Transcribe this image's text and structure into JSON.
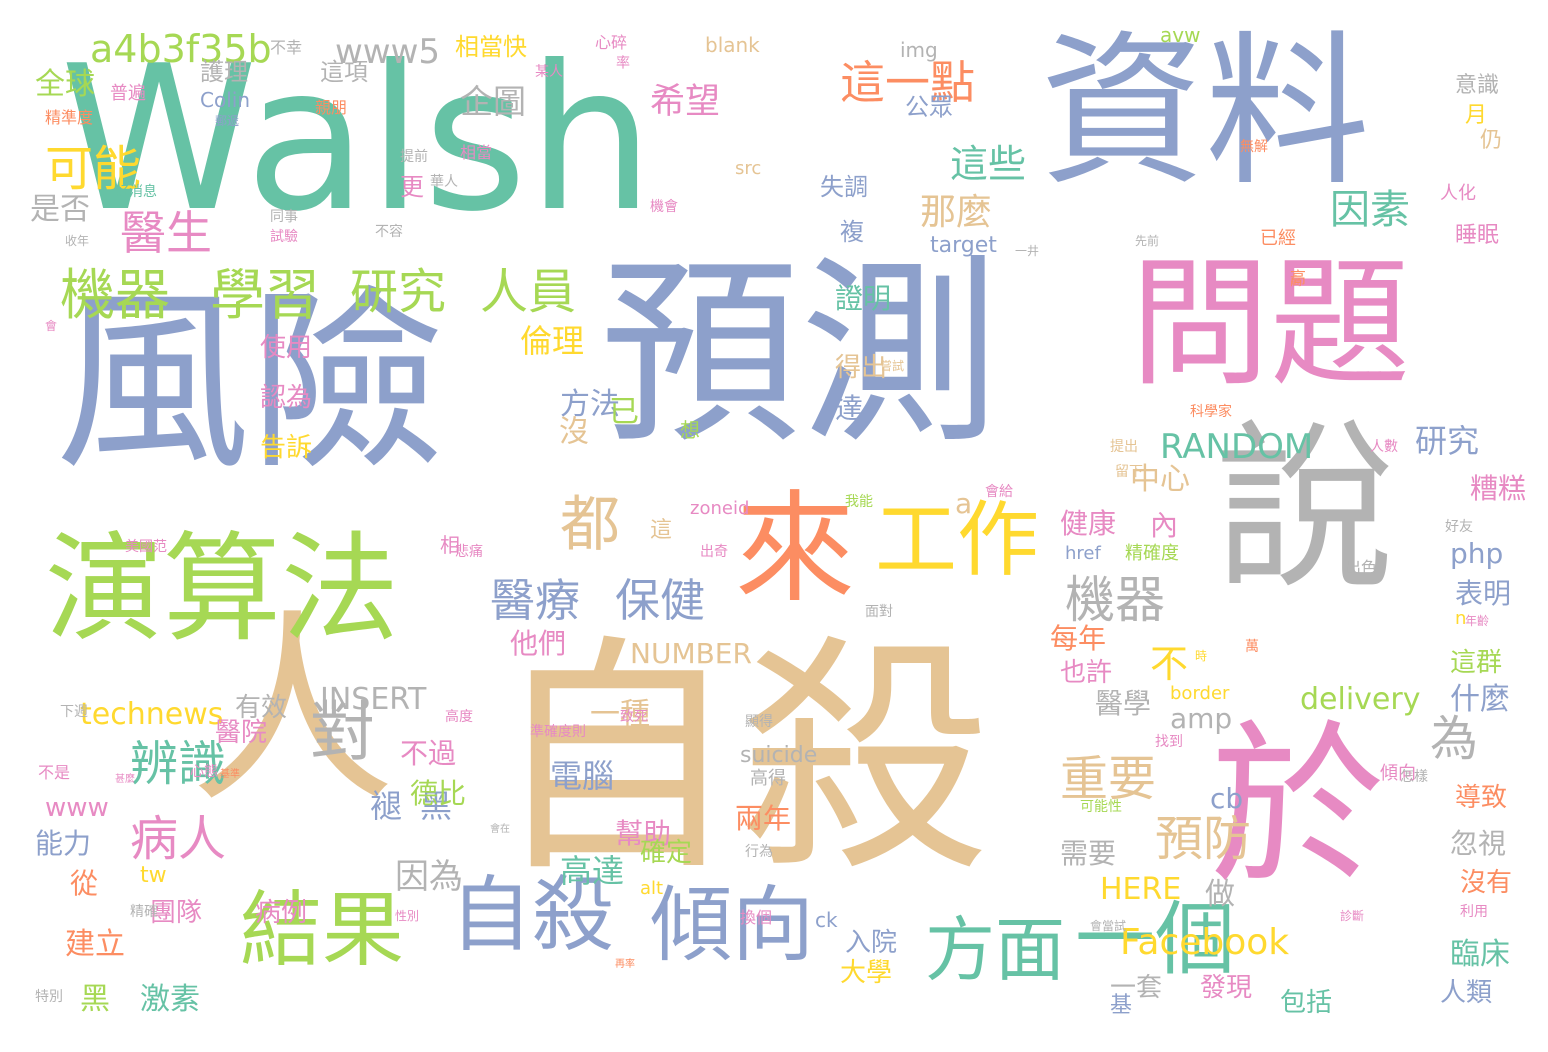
{
  "palette": {
    "teal": "#66c2a5",
    "orange": "#fc8d62",
    "blue": "#8da0cb",
    "pink": "#e78ac3",
    "green": "#a6d854",
    "yellow": "#ffd92f",
    "tan": "#e5c494",
    "gray": "#b3b3b3"
  },
  "words": [
    {
      "text": "Walsh",
      "color": "teal"
    },
    {
      "text": "資料",
      "color": "blue"
    },
    {
      "text": "風險",
      "color": "blue"
    },
    {
      "text": "預測",
      "color": "blue"
    },
    {
      "text": "問題",
      "color": "pink"
    },
    {
      "text": "自殺",
      "color": "tan"
    },
    {
      "text": "說",
      "color": "gray"
    },
    {
      "text": "人",
      "color": "tan"
    },
    {
      "text": "於",
      "color": "pink"
    },
    {
      "text": "演算法",
      "color": "green"
    },
    {
      "text": "來",
      "color": "orange"
    },
    {
      "text": "工作",
      "color": "yellow"
    },
    {
      "text": "自殺",
      "color": "blue"
    },
    {
      "text": "傾向",
      "color": "blue"
    },
    {
      "text": "結果",
      "color": "green"
    },
    {
      "text": "方面",
      "color": "teal"
    },
    {
      "text": "一個",
      "color": "teal"
    },
    {
      "text": "機器",
      "color": "green"
    },
    {
      "text": "學習",
      "color": "green"
    },
    {
      "text": "研究",
      "color": "green"
    },
    {
      "text": "人員",
      "color": "green"
    },
    {
      "text": "對",
      "color": "gray"
    },
    {
      "text": "都",
      "color": "tan"
    },
    {
      "text": "醫療",
      "color": "blue"
    },
    {
      "text": "保健",
      "color": "blue"
    },
    {
      "text": "機器",
      "color": "gray"
    },
    {
      "text": "重要",
      "color": "tan"
    },
    {
      "text": "預防",
      "color": "tan"
    },
    {
      "text": "辨識",
      "color": "teal"
    },
    {
      "text": "病人",
      "color": "pink"
    },
    {
      "text": "可能",
      "color": "yellow"
    },
    {
      "text": "醫生",
      "color": "pink"
    },
    {
      "text": "a4b3f35b",
      "color": "green"
    },
    {
      "text": "www5",
      "color": "gray"
    },
    {
      "text": "企圖",
      "color": "gray"
    },
    {
      "text": "希望",
      "color": "pink"
    },
    {
      "text": "這一點",
      "color": "orange"
    },
    {
      "text": "這些",
      "color": "teal"
    },
    {
      "text": "那麼",
      "color": "tan"
    },
    {
      "text": "因素",
      "color": "teal"
    },
    {
      "text": "全球",
      "color": "green"
    },
    {
      "text": "是否",
      "color": "gray"
    },
    {
      "text": "不",
      "color": "yellow"
    },
    {
      "text": "為",
      "color": "gray"
    },
    {
      "text": "RANDOM",
      "color": "teal"
    },
    {
      "text": "研究",
      "color": "blue"
    },
    {
      "text": "中心",
      "color": "tan"
    },
    {
      "text": "a",
      "color": "tan"
    },
    {
      "text": "倫理",
      "color": "yellow"
    },
    {
      "text": "方法",
      "color": "blue"
    },
    {
      "text": "沒",
      "color": "tan"
    },
    {
      "text": "已",
      "color": "green"
    },
    {
      "text": "證明",
      "color": "teal"
    },
    {
      "text": "得出",
      "color": "tan"
    },
    {
      "text": "達",
      "color": "blue"
    },
    {
      "text": "使用",
      "color": "pink"
    },
    {
      "text": "認為",
      "color": "pink"
    },
    {
      "text": "告訴",
      "color": "yellow"
    },
    {
      "text": "NUMBER",
      "color": "tan"
    },
    {
      "text": "他們",
      "color": "pink"
    },
    {
      "text": "INSERT",
      "color": "gray"
    },
    {
      "text": "technews",
      "color": "yellow"
    },
    {
      "text": "有效",
      "color": "gray"
    },
    {
      "text": "一種",
      "color": "tan"
    },
    {
      "text": "電腦",
      "color": "blue"
    },
    {
      "text": "幫助",
      "color": "pink"
    },
    {
      "text": "兩年",
      "color": "orange"
    },
    {
      "text": "高達",
      "color": "teal"
    },
    {
      "text": "確定",
      "color": "green"
    },
    {
      "text": "褪",
      "color": "blue"
    },
    {
      "text": "黑",
      "color": "blue"
    },
    {
      "text": "德比",
      "color": "green"
    },
    {
      "text": "不過",
      "color": "pink"
    },
    {
      "text": "因為",
      "color": "gray"
    },
    {
      "text": "病例",
      "color": "pink"
    },
    {
      "text": "團隊",
      "color": "pink"
    },
    {
      "text": "建立",
      "color": "orange"
    },
    {
      "text": "黑",
      "color": "green"
    },
    {
      "text": "激素",
      "color": "teal"
    },
    {
      "text": "大學",
      "color": "yellow"
    },
    {
      "text": "入院",
      "color": "blue"
    },
    {
      "text": "Facebook",
      "color": "yellow"
    },
    {
      "text": "一套",
      "color": "gray"
    },
    {
      "text": "發現",
      "color": "pink"
    },
    {
      "text": "包括",
      "color": "teal"
    },
    {
      "text": "臨床",
      "color": "teal"
    },
    {
      "text": "人類",
      "color": "blue"
    },
    {
      "text": "做",
      "color": "gray"
    },
    {
      "text": "HERE",
      "color": "yellow"
    },
    {
      "text": "需要",
      "color": "gray"
    },
    {
      "text": "cb",
      "color": "blue"
    },
    {
      "text": "amp",
      "color": "gray"
    },
    {
      "text": "醫學",
      "color": "gray"
    },
    {
      "text": "delivery",
      "color": "green"
    },
    {
      "text": "什麼",
      "color": "blue"
    },
    {
      "text": "每年",
      "color": "orange"
    },
    {
      "text": "也許",
      "color": "pink"
    },
    {
      "text": "健康",
      "color": "pink"
    },
    {
      "text": "內",
      "color": "pink"
    },
    {
      "text": "php",
      "color": "blue"
    },
    {
      "text": "表明",
      "color": "blue"
    },
    {
      "text": "糟糕",
      "color": "pink"
    },
    {
      "text": "這群",
      "color": "green"
    },
    {
      "text": "忽視",
      "color": "gray"
    },
    {
      "text": "沒有",
      "color": "orange"
    },
    {
      "text": "導致",
      "color": "orange"
    },
    {
      "text": "suicide",
      "color": "gray"
    },
    {
      "text": "能力",
      "color": "blue"
    },
    {
      "text": "www",
      "color": "pink"
    },
    {
      "text": "從",
      "color": "orange"
    },
    {
      "text": "tw",
      "color": "yellow"
    },
    {
      "text": "醫院",
      "color": "pink"
    },
    {
      "text": "睡眠",
      "color": "pink"
    },
    {
      "text": "意識",
      "color": "gray"
    },
    {
      "text": "月",
      "color": "yellow"
    },
    {
      "text": "仍",
      "color": "tan"
    },
    {
      "text": "人化",
      "color": "pink"
    },
    {
      "text": "已經",
      "color": "orange"
    },
    {
      "text": "高",
      "color": "orange"
    },
    {
      "text": "相當快",
      "color": "yellow"
    },
    {
      "text": "這項",
      "color": "gray"
    },
    {
      "text": "護理",
      "color": "gray"
    },
    {
      "text": "普遍",
      "color": "pink"
    },
    {
      "text": "精準度",
      "color": "orange"
    },
    {
      "text": "Colin",
      "color": "blue"
    },
    {
      "text": "img",
      "color": "gray"
    },
    {
      "text": "blank",
      "color": "tan"
    },
    {
      "text": "avw",
      "color": "green"
    },
    {
      "text": "公眾",
      "color": "blue"
    },
    {
      "text": "失調",
      "color": "blue"
    },
    {
      "text": "複",
      "color": "blue"
    },
    {
      "text": "更",
      "color": "pink"
    },
    {
      "text": "src",
      "color": "tan"
    },
    {
      "text": "target",
      "color": "blue"
    },
    {
      "text": "zoneid",
      "color": "pink"
    },
    {
      "text": "alt",
      "color": "yellow"
    },
    {
      "text": "ck",
      "color": "blue"
    },
    {
      "text": "href",
      "color": "blue"
    },
    {
      "text": "精確度",
      "color": "green"
    },
    {
      "text": "border",
      "color": "yellow"
    },
    {
      "text": "高得",
      "color": "gray"
    },
    {
      "text": "傾向",
      "color": "pink"
    },
    {
      "text": "n",
      "color": "yellow"
    },
    {
      "text": "基",
      "color": "blue"
    },
    {
      "text": "想",
      "color": "green"
    },
    {
      "text": "相",
      "color": "pink"
    },
    {
      "text": "這",
      "color": "tan"
    },
    {
      "text": "相當",
      "color": "pink"
    },
    {
      "text": "不幸",
      "color": "gray"
    },
    {
      "text": "心碎",
      "color": "pink"
    },
    {
      "text": "率",
      "color": "pink"
    },
    {
      "text": "某人",
      "color": "pink"
    },
    {
      "text": "無解",
      "color": "orange"
    },
    {
      "text": "機會",
      "color": "pink"
    },
    {
      "text": "好消息",
      "color": "teal"
    },
    {
      "text": "同事",
      "color": "gray"
    },
    {
      "text": "試驗",
      "color": "pink"
    },
    {
      "text": "收年",
      "color": "gray"
    },
    {
      "text": "不容",
      "color": "gray"
    },
    {
      "text": "提前",
      "color": "gray"
    },
    {
      "text": "華人",
      "color": "gray"
    },
    {
      "text": "親朋",
      "color": "orange"
    },
    {
      "text": "郵遞",
      "color": "blue"
    },
    {
      "text": "科學家",
      "color": "orange"
    },
    {
      "text": "提出",
      "color": "tan"
    },
    {
      "text": "留下",
      "color": "tan"
    },
    {
      "text": "人數",
      "color": "pink"
    },
    {
      "text": "會給",
      "color": "pink"
    },
    {
      "text": "我能",
      "color": "green"
    },
    {
      "text": "出色",
      "color": "gray"
    },
    {
      "text": "好友",
      "color": "gray"
    },
    {
      "text": "美國范",
      "color": "pink"
    },
    {
      "text": "悲痛",
      "color": "pink"
    },
    {
      "text": "出奇",
      "color": "pink"
    },
    {
      "text": "面對",
      "color": "gray"
    },
    {
      "text": "萬",
      "color": "orange"
    },
    {
      "text": "時",
      "color": "yellow"
    },
    {
      "text": "年齡",
      "color": "pink"
    },
    {
      "text": "下週",
      "color": "gray"
    },
    {
      "text": "高度",
      "color": "pink"
    },
    {
      "text": "準確度則",
      "color": "pink"
    },
    {
      "text": "致死",
      "color": "pink"
    },
    {
      "text": "顯得",
      "color": "gray"
    },
    {
      "text": "找到",
      "color": "pink"
    },
    {
      "text": "怎樣",
      "color": "gray"
    },
    {
      "text": "心態",
      "color": "pink"
    },
    {
      "text": "不是",
      "color": "pink"
    },
    {
      "text": "會當試",
      "color": "gray"
    },
    {
      "text": "特別",
      "color": "gray"
    },
    {
      "text": "精確",
      "color": "gray"
    },
    {
      "text": "性別",
      "color": "pink"
    },
    {
      "text": "換個",
      "color": "pink"
    },
    {
      "text": "行為",
      "color": "gray"
    },
    {
      "text": "可能性",
      "color": "green"
    },
    {
      "text": "利用",
      "color": "pink"
    },
    {
      "text": "診斷",
      "color": "pink"
    },
    {
      "text": "甚麼",
      "color": "pink"
    },
    {
      "text": "會",
      "color": "pink"
    },
    {
      "text": "一井",
      "color": "gray"
    },
    {
      "text": "先前",
      "color": "gray"
    },
    {
      "text": "高",
      "color": "orange"
    },
    {
      "text": "嘗試",
      "color": "tan"
    },
    {
      "text": "會在",
      "color": "gray"
    },
    {
      "text": "再率",
      "color": "orange"
    },
    {
      "text": "基準",
      "color": "orange"
    }
  ]
}
